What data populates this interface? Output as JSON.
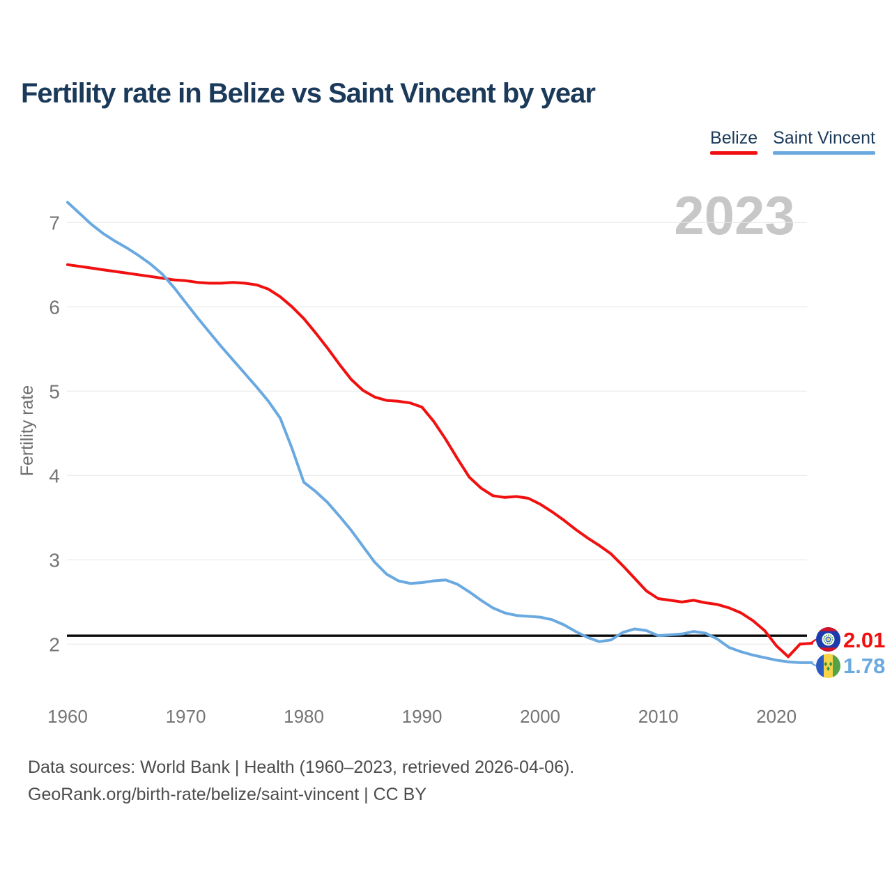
{
  "title": "Fertility rate in Belize vs Saint Vincent by year",
  "watermark": "2023",
  "legend": {
    "items": [
      {
        "label": "Belize",
        "color": "#f01010"
      },
      {
        "label": "Saint Vincent",
        "color": "#6aa9e0"
      }
    ]
  },
  "footer": {
    "line1": "Data sources: World Bank | Health (1960–2023, retrieved 2026-04-06).",
    "line2": "GeoRank.org/birth-rate/belize/saint-vincent | CC BY"
  },
  "chart_data": {
    "type": "line",
    "title": "Fertility rate in Belize vs Saint Vincent by year",
    "xlabel": "",
    "ylabel": "Fertility rate",
    "grid": "horizontal-only",
    "legend_position": "top-right",
    "xlim": [
      1960,
      2023
    ],
    "ylim": [
      1.6,
      7.4
    ],
    "y_ticks": [
      2,
      3,
      4,
      5,
      6,
      7
    ],
    "x_ticks": [
      1960,
      1970,
      1980,
      1990,
      2000,
      2010,
      2020
    ],
    "threshold": {
      "value": 2.1,
      "color": "#0a0a0a",
      "note": "black horizontal reference line"
    },
    "years": [
      1960,
      1961,
      1962,
      1963,
      1964,
      1965,
      1966,
      1967,
      1968,
      1969,
      1970,
      1971,
      1972,
      1973,
      1974,
      1975,
      1976,
      1977,
      1978,
      1979,
      1980,
      1981,
      1982,
      1983,
      1984,
      1985,
      1986,
      1987,
      1988,
      1989,
      1990,
      1991,
      1992,
      1993,
      1994,
      1995,
      1996,
      1997,
      1998,
      1999,
      2000,
      2001,
      2002,
      2003,
      2004,
      2005,
      2006,
      2007,
      2008,
      2009,
      2010,
      2011,
      2012,
      2013,
      2014,
      2015,
      2016,
      2017,
      2018,
      2019,
      2020,
      2021,
      2022,
      2023
    ],
    "series": [
      {
        "name": "Belize",
        "color": "#f01010",
        "end_label": "2.01",
        "flag": "belize",
        "values": [
          6.5,
          6.48,
          6.46,
          6.44,
          6.42,
          6.4,
          6.38,
          6.36,
          6.34,
          6.32,
          6.31,
          6.29,
          6.28,
          6.28,
          6.29,
          6.28,
          6.26,
          6.21,
          6.12,
          6.0,
          5.86,
          5.69,
          5.51,
          5.32,
          5.14,
          5.01,
          4.93,
          4.89,
          4.88,
          4.86,
          4.81,
          4.64,
          4.43,
          4.2,
          3.98,
          3.85,
          3.76,
          3.74,
          3.75,
          3.73,
          3.66,
          3.57,
          3.47,
          3.36,
          3.26,
          3.17,
          3.07,
          2.93,
          2.78,
          2.63,
          2.54,
          2.52,
          2.5,
          2.52,
          2.49,
          2.47,
          2.43,
          2.37,
          2.28,
          2.16,
          1.98,
          1.85,
          2.0,
          2.01
        ]
      },
      {
        "name": "Saint Vincent",
        "color": "#6aa9e0",
        "end_label": "1.78",
        "flag": "saint-vincent",
        "values": [
          7.24,
          7.11,
          6.98,
          6.87,
          6.78,
          6.7,
          6.61,
          6.51,
          6.39,
          6.23,
          6.05,
          5.87,
          5.7,
          5.53,
          5.37,
          5.21,
          5.05,
          4.88,
          4.68,
          4.32,
          3.92,
          3.81,
          3.68,
          3.52,
          3.35,
          3.16,
          2.97,
          2.83,
          2.75,
          2.72,
          2.73,
          2.75,
          2.76,
          2.71,
          2.62,
          2.52,
          2.43,
          2.37,
          2.34,
          2.33,
          2.32,
          2.29,
          2.23,
          2.15,
          2.08,
          2.03,
          2.05,
          2.14,
          2.18,
          2.16,
          2.1,
          2.11,
          2.12,
          2.15,
          2.13,
          2.06,
          1.96,
          1.91,
          1.87,
          1.84,
          1.81,
          1.79,
          1.78,
          1.78
        ]
      }
    ]
  }
}
